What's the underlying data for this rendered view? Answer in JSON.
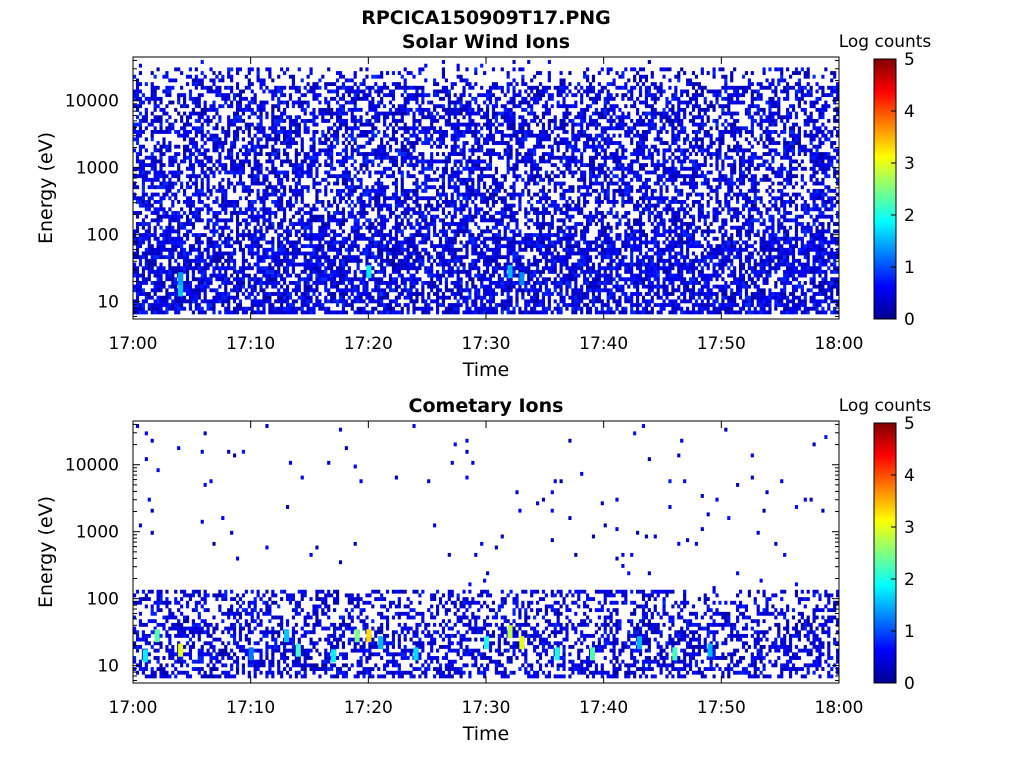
{
  "figure_title": "RPCICA150909T17.PNG",
  "chart_data": [
    {
      "type": "heatmap",
      "title": "Solar Wind Ions",
      "xlabel": "Time",
      "ylabel": "Energy (eV)",
      "x_ticks": [
        "17:00",
        "17:10",
        "17:20",
        "17:30",
        "17:40",
        "17:50",
        "18:00"
      ],
      "y_ticks": [
        "10",
        "100",
        "1000",
        "10000"
      ],
      "y_scale": "log",
      "ylim": [
        5.5,
        45000
      ],
      "colorbar": {
        "label": "Log counts",
        "ticks": [
          "0",
          "1",
          "2",
          "3",
          "4",
          "5"
        ],
        "range": [
          0,
          5
        ],
        "colormap": "jet"
      },
      "description": "Dense log-count background (~0.2-1) across all energies 10 eV-30 keV; densest below 100 eV, occasional ~1.5-2 cells near 15-30 eV",
      "hotspots": [
        {
          "time": "17:04",
          "energy_eV": 15,
          "log_counts": 1.6
        },
        {
          "time": "17:04",
          "energy_eV": 22,
          "log_counts": 1.4
        },
        {
          "time": "17:20",
          "energy_eV": 28,
          "log_counts": 1.8
        },
        {
          "time": "17:32",
          "energy_eV": 28,
          "log_counts": 1.5
        },
        {
          "time": "17:33",
          "energy_eV": 22,
          "log_counts": 1.3
        }
      ]
    },
    {
      "type": "heatmap",
      "title": "Cometary Ions",
      "xlabel": "Time",
      "ylabel": "Energy (eV)",
      "x_ticks": [
        "17:00",
        "17:10",
        "17:20",
        "17:30",
        "17:40",
        "17:50",
        "18:00"
      ],
      "y_ticks": [
        "10",
        "100",
        "1000",
        "10000"
      ],
      "y_scale": "log",
      "ylim": [
        5.5,
        45000
      ],
      "colorbar": {
        "label": "Log counts",
        "ticks": [
          "0",
          "1",
          "2",
          "3",
          "4",
          "5"
        ],
        "range": [
          0,
          5
        ],
        "colormap": "jet"
      },
      "description": "Counts mostly below ~130 eV with sparse single counts up to ~30 keV",
      "hotspots": [
        {
          "time": "17:01",
          "energy_eV": 14,
          "log_counts": 1.8
        },
        {
          "time": "17:02",
          "energy_eV": 28,
          "log_counts": 2.3
        },
        {
          "time": "17:04",
          "energy_eV": 17,
          "log_counts": 3.0
        },
        {
          "time": "17:10",
          "energy_eV": 15,
          "log_counts": 1.2
        },
        {
          "time": "17:13",
          "energy_eV": 28,
          "log_counts": 1.6
        },
        {
          "time": "17:14",
          "energy_eV": 17,
          "log_counts": 2.2
        },
        {
          "time": "17:17",
          "energy_eV": 14,
          "log_counts": 1.8
        },
        {
          "time": "17:19",
          "energy_eV": 28,
          "log_counts": 2.5
        },
        {
          "time": "17:20",
          "energy_eV": 28,
          "log_counts": 3.3
        },
        {
          "time": "17:21",
          "energy_eV": 22,
          "log_counts": 1.5
        },
        {
          "time": "17:24",
          "energy_eV": 15,
          "log_counts": 1.7
        },
        {
          "time": "17:30",
          "energy_eV": 22,
          "log_counts": 2.0
        },
        {
          "time": "17:32",
          "energy_eV": 32,
          "log_counts": 2.8
        },
        {
          "time": "17:33",
          "energy_eV": 22,
          "log_counts": 3.0
        },
        {
          "time": "17:36",
          "energy_eV": 15,
          "log_counts": 2.0
        },
        {
          "time": "17:39",
          "energy_eV": 15,
          "log_counts": 2.3
        },
        {
          "time": "17:43",
          "energy_eV": 22,
          "log_counts": 1.5
        },
        {
          "time": "17:46",
          "energy_eV": 15,
          "log_counts": 2.2
        },
        {
          "time": "17:49",
          "energy_eV": 17,
          "log_counts": 1.5
        }
      ]
    }
  ]
}
